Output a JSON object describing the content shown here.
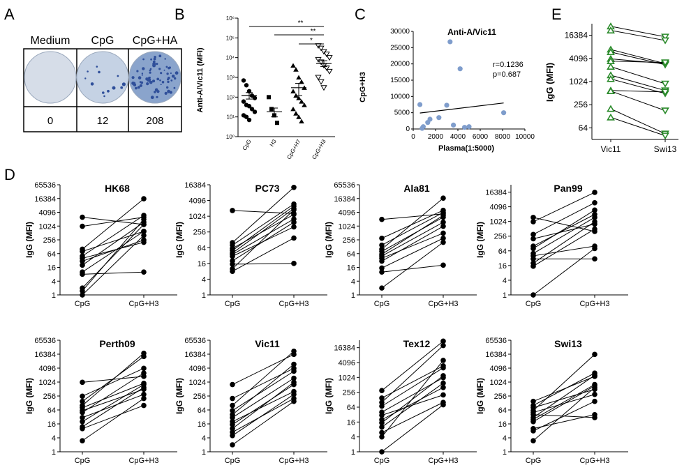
{
  "panel_letters": [
    "A",
    "B",
    "C",
    "D",
    "E"
  ],
  "chart_data": [
    {
      "panel": "A",
      "type": "table",
      "columns": [
        "Medium",
        "CpG",
        "CpG+HA"
      ],
      "values": [
        "0",
        "12",
        "208"
      ],
      "spot_density": [
        0,
        12,
        208
      ]
    },
    {
      "panel": "B",
      "type": "scatter",
      "ylabel": "Anti-A/Vic11 (MFI)",
      "yscale": "log10",
      "ylim": [
        1,
        1000000
      ],
      "yticks": [
        "10⁰",
        "10¹",
        "10²",
        "10³",
        "10⁴",
        "10⁵",
        "10⁶"
      ],
      "categories": [
        "CpG",
        "H3",
        "CpG+H7",
        "CpG+H3"
      ],
      "series": [
        {
          "category": "CpG",
          "marker": "circle",
          "values": [
            700,
            400,
            200,
            120,
            90,
            60,
            40,
            35,
            25,
            18,
            12,
            10,
            7
          ],
          "mean": 120,
          "sem": [
            80,
            170
          ]
        },
        {
          "category": "H3",
          "marker": "square",
          "values": [
            100,
            25,
            12,
            5
          ],
          "mean": 18,
          "sem": [
            10,
            28
          ]
        },
        {
          "category": "CpG+H7",
          "marker": "triangle",
          "values": [
            4000,
            2500,
            1000,
            600,
            300,
            200,
            120,
            90,
            60,
            40,
            25,
            15,
            10,
            6
          ],
          "mean": 300,
          "sem": [
            120,
            500
          ]
        },
        {
          "category": "CpG+H3",
          "marker": "triangle-down",
          "values": [
            40000,
            30000,
            20000,
            15000,
            10000,
            8000,
            6000,
            4000,
            3000,
            2000,
            1000,
            600,
            300
          ],
          "mean": 5000,
          "sem": [
            3500,
            7000
          ]
        }
      ],
      "significance": [
        {
          "from": "CpG",
          "to": "CpG+H3",
          "label": "**"
        },
        {
          "from": "H3",
          "to": "CpG+H3",
          "label": "**"
        },
        {
          "from": "CpG+H7",
          "to": "CpG+H3",
          "label": "*"
        }
      ]
    },
    {
      "panel": "C",
      "type": "scatter",
      "title": "Anti-A/Vic11",
      "xlabel": "Plasma(1:5000)",
      "ylabel": "CpG+H3",
      "xlim": [
        0,
        10000
      ],
      "ylim": [
        0,
        30000
      ],
      "xticks": [
        0,
        2000,
        4000,
        6000,
        8000,
        10000
      ],
      "yticks": [
        0,
        5000,
        10000,
        15000,
        20000,
        25000,
        30000
      ],
      "points": [
        {
          "x": 600,
          "y": 7500
        },
        {
          "x": 800,
          "y": 200
        },
        {
          "x": 900,
          "y": 700
        },
        {
          "x": 1300,
          "y": 2000
        },
        {
          "x": 1500,
          "y": 3000
        },
        {
          "x": 2300,
          "y": 3500
        },
        {
          "x": 3000,
          "y": 7300
        },
        {
          "x": 3300,
          "y": 26800
        },
        {
          "x": 3600,
          "y": 1200
        },
        {
          "x": 4200,
          "y": 18500
        },
        {
          "x": 4600,
          "y": 500
        },
        {
          "x": 5000,
          "y": 700
        },
        {
          "x": 8100,
          "y": 5000
        }
      ],
      "fit_line": {
        "x": [
          600,
          8100
        ],
        "y": [
          4900,
          8000
        ]
      },
      "stats": [
        "r=0.1236",
        "p=0.687"
      ]
    },
    {
      "panel": "E",
      "type": "line",
      "ylabel": "IgG (MFI)",
      "yscale": "log2",
      "ylim": [
        32,
        32768
      ],
      "yticks": [
        64,
        256,
        1024,
        4096,
        16384
      ],
      "categories": [
        "Vic11",
        "Swi13"
      ],
      "color": "#2a8a2a",
      "pairs": [
        [
          28000,
          15000
        ],
        [
          22000,
          12000
        ],
        [
          7000,
          3000
        ],
        [
          6000,
          2800
        ],
        [
          4000,
          3000
        ],
        [
          3500,
          3200
        ],
        [
          2500,
          900
        ],
        [
          1500,
          600
        ],
        [
          1200,
          500
        ],
        [
          600,
          550
        ],
        [
          580,
          180
        ],
        [
          200,
          45
        ],
        [
          120,
          40
        ]
      ]
    },
    {
      "panel": "D",
      "type": "line",
      "ylabel": "IgG (MFI)",
      "yscale": "log2",
      "categories": [
        "CpG",
        "CpG+H3"
      ],
      "subplots": [
        {
          "title": "HK68",
          "ymax": 65536,
          "yticks": [
            1,
            4,
            16,
            64,
            256,
            1024,
            4096,
            16384,
            65536
          ],
          "pairs": [
            [
              2500,
              1200
            ],
            [
              1000,
              2500
            ],
            [
              100,
              16000
            ],
            [
              80,
              600
            ],
            [
              50,
              3000
            ],
            [
              40,
              200
            ],
            [
              30,
              250
            ],
            [
              20,
              1500
            ],
            [
              10,
              600
            ],
            [
              8,
              10
            ],
            [
              2,
              1200
            ],
            [
              1.5,
              2000
            ],
            [
              1,
              400
            ]
          ]
        },
        {
          "title": "PC73",
          "ymax": 16384,
          "yticks": [
            1,
            4,
            16,
            64,
            256,
            1024,
            4096,
            16384
          ],
          "pairs": [
            [
              1700,
              1300
            ],
            [
              100,
              13000
            ],
            [
              80,
              3000
            ],
            [
              60,
              1200
            ],
            [
              40,
              2000
            ],
            [
              30,
              400
            ],
            [
              20,
              600
            ],
            [
              15,
              16
            ],
            [
              10,
              1800
            ],
            [
              8,
              150
            ],
            [
              50,
              2500
            ],
            [
              35,
              800
            ]
          ]
        },
        {
          "title": "Ala81",
          "ymax": 65536,
          "yticks": [
            1,
            4,
            16,
            64,
            256,
            1024,
            4096,
            16384,
            65536
          ],
          "pairs": [
            [
              2000,
              3500
            ],
            [
              300,
              5000
            ],
            [
              150,
              4000
            ],
            [
              100,
              17000
            ],
            [
              80,
              2500
            ],
            [
              60,
              3000
            ],
            [
              50,
              1500
            ],
            [
              40,
              500
            ],
            [
              30,
              1000
            ],
            [
              15,
              300
            ],
            [
              10,
              20
            ],
            [
              2,
              200
            ]
          ]
        },
        {
          "title": "Pan99",
          "ymax": 32768,
          "yticks": [
            1,
            4,
            16,
            64,
            256,
            1024,
            4096,
            16384
          ],
          "pairs": [
            [
              1500,
              400
            ],
            [
              1000,
              16000
            ],
            [
              300,
              6000
            ],
            [
              200,
              800
            ],
            [
              100,
              2000
            ],
            [
              80,
              3000
            ],
            [
              50,
              1500
            ],
            [
              40,
              100
            ],
            [
              30,
              30
            ],
            [
              20,
              1000
            ],
            [
              15,
              500
            ],
            [
              1,
              80
            ]
          ]
        },
        {
          "title": "Perth09",
          "ymax": 65536,
          "yticks": [
            1,
            4,
            16,
            64,
            256,
            1024,
            4096,
            16384,
            65536
          ],
          "pairs": [
            [
              1000,
              1800
            ],
            [
              250,
              4000
            ],
            [
              150,
              13000
            ],
            [
              100,
              18000
            ],
            [
              80,
              900
            ],
            [
              60,
              500
            ],
            [
              50,
              2500
            ],
            [
              30,
              300
            ],
            [
              20,
              800
            ],
            [
              12,
              600
            ],
            [
              10,
              100
            ],
            [
              3,
              200
            ]
          ]
        },
        {
          "title": "Vic11",
          "ymax": 65536,
          "yticks": [
            1,
            4,
            16,
            64,
            256,
            1024,
            4096,
            16384,
            65536
          ],
          "pairs": [
            [
              800,
              16000
            ],
            [
              200,
              4000
            ],
            [
              100,
              22000
            ],
            [
              60,
              3000
            ],
            [
              40,
              6000
            ],
            [
              30,
              1500
            ],
            [
              20,
              400
            ],
            [
              15,
              800
            ],
            [
              10,
              1000
            ],
            [
              7,
              200
            ],
            [
              5,
              300
            ],
            [
              2,
              150
            ]
          ]
        },
        {
          "title": "Tex12",
          "ymax": 32768,
          "yticks": [
            1,
            4,
            16,
            64,
            256,
            1024,
            4096,
            16384
          ],
          "pairs": [
            [
              300,
              30000
            ],
            [
              150,
              3000
            ],
            [
              100,
              20000
            ],
            [
              70,
              2500
            ],
            [
              40,
              1000
            ],
            [
              30,
              200
            ],
            [
              20,
              400
            ],
            [
              15,
              1200
            ],
            [
              10,
              600
            ],
            [
              6,
              100
            ],
            [
              4,
              5000
            ],
            [
              1,
              80
            ]
          ]
        },
        {
          "title": "Swi13",
          "ymax": 65536,
          "yticks": [
            1,
            4,
            16,
            64,
            256,
            1024,
            4096,
            16384,
            65536
          ],
          "pairs": [
            [
              150,
              1800
            ],
            [
              100,
              2500
            ],
            [
              80,
              500
            ],
            [
              60,
              16000
            ],
            [
              50,
              300
            ],
            [
              30,
              2000
            ],
            [
              20,
              700
            ],
            [
              10,
              40
            ],
            [
              8,
              150
            ],
            [
              3,
              600
            ],
            [
              40,
              30
            ],
            [
              25,
              800
            ]
          ]
        }
      ]
    }
  ]
}
